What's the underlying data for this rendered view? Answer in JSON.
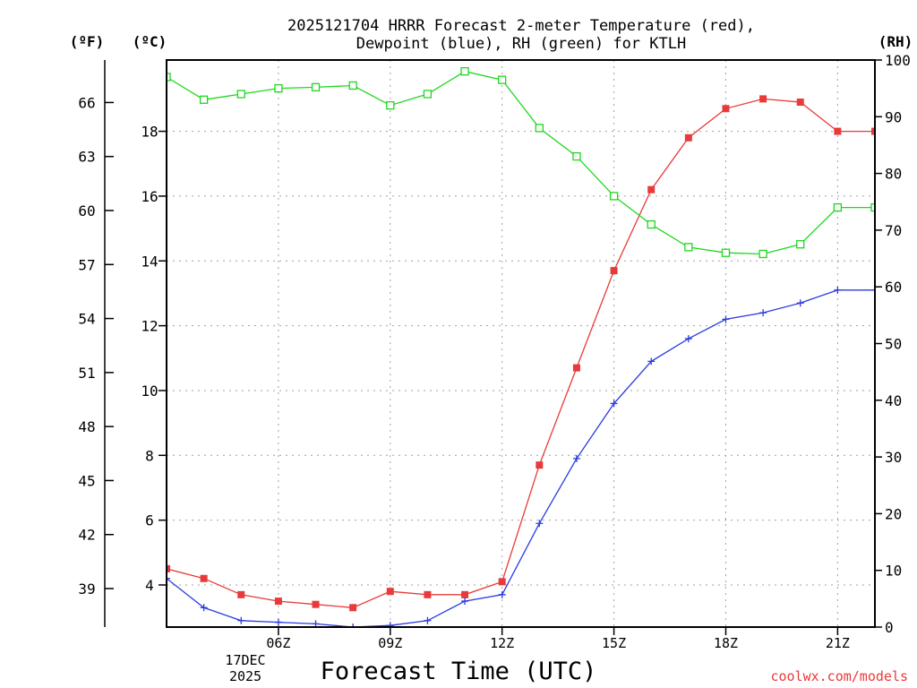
{
  "chart_data": {
    "type": "line",
    "title": [
      "2025121704 HRRR Forecast 2-meter Temperature (red),",
      "Dewpoint (blue), RH (green) for KTLH"
    ],
    "xlabel": "Forecast Time (UTC)",
    "units": {
      "left_outer": "(ºF)",
      "left_inner": "(ºC)",
      "right": "(RH)"
    },
    "x_range_hours": [
      3,
      22
    ],
    "x_ticks": [
      {
        "hour": 6,
        "label": "06Z"
      },
      {
        "hour": 9,
        "label": "09Z"
      },
      {
        "hour": 12,
        "label": "12Z"
      },
      {
        "hour": 15,
        "label": "15Z"
      },
      {
        "hour": 18,
        "label": "18Z"
      },
      {
        "hour": 21,
        "label": "21Z"
      }
    ],
    "date_label": [
      "17DEC",
      "2025"
    ],
    "celsius_axis": {
      "range": [
        2.7,
        20.2
      ],
      "ticks": [
        4,
        6,
        8,
        10,
        12,
        14,
        16,
        18
      ]
    },
    "fahrenheit_axis": {
      "ticks": [
        39,
        42,
        45,
        48,
        51,
        54,
        57,
        60,
        63,
        66
      ]
    },
    "rh_axis": {
      "range": [
        0,
        100
      ],
      "ticks": [
        0,
        10,
        20,
        30,
        40,
        50,
        60,
        70,
        80,
        90,
        100
      ]
    },
    "hours": [
      3,
      4,
      5,
      6,
      7,
      8,
      9,
      10,
      11,
      12,
      13,
      14,
      15,
      16,
      17,
      18,
      19,
      20,
      21,
      22
    ],
    "series": [
      {
        "name": "Temperature",
        "unit": "C",
        "color": "#e83a3a",
        "marker": "filled-square",
        "values": [
          4.5,
          4.2,
          3.7,
          3.5,
          3.4,
          3.3,
          3.8,
          3.7,
          3.7,
          4.1,
          7.7,
          10.7,
          13.7,
          16.2,
          17.8,
          18.7,
          19.0,
          18.9,
          18.0,
          18.0
        ]
      },
      {
        "name": "Dewpoint",
        "unit": "C",
        "color": "#2a3ae0",
        "marker": "plus",
        "values": [
          4.2,
          3.3,
          2.9,
          2.85,
          2.8,
          2.7,
          2.75,
          2.9,
          3.5,
          3.7,
          5.9,
          7.9,
          9.6,
          10.9,
          11.6,
          12.2,
          12.4,
          12.7,
          13.1,
          13.1
        ]
      },
      {
        "name": "RH",
        "unit": "%",
        "color": "#1ed81e",
        "marker": "open-square",
        "values": [
          97,
          93,
          94,
          95,
          95.2,
          95.5,
          92,
          94,
          98,
          96.5,
          88,
          83,
          76,
          71,
          67,
          66,
          65.8,
          67.5,
          74,
          74
        ]
      }
    ]
  },
  "credit": "coolwx.com/models"
}
